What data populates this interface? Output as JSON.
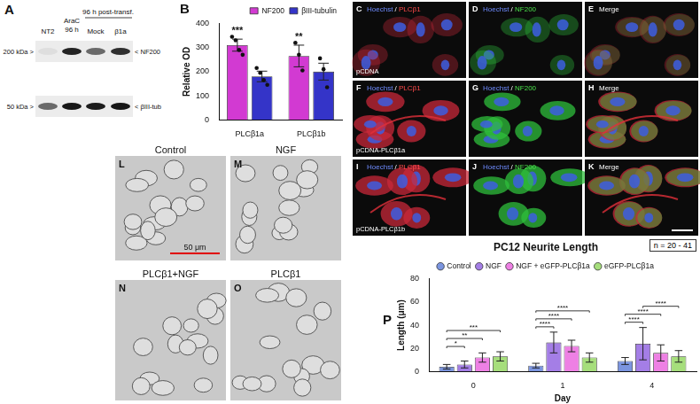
{
  "panel_a": {
    "letter": "A",
    "lanes": [
      [
        "NT2"
      ],
      [
        "AraC",
        "96 h"
      ],
      [
        "Mock"
      ],
      [
        "β1a"
      ]
    ],
    "group_label": "96 h post-transf.",
    "rows": [
      {
        "size": "200 kDa >",
        "band": "< NF200"
      },
      {
        "size": "50 kDa >",
        "band": "< βIII-tub"
      }
    ]
  },
  "micrographs_c_k": {
    "columns": [
      "Hoechst / PLCβ1",
      "Hoechst / NF200",
      "Merge"
    ],
    "rows": [
      {
        "condition": "pCDNA",
        "letters": [
          "C",
          "D",
          "E"
        ]
      },
      {
        "condition": "pCDNA-PLCβ1a",
        "letters": [
          "F",
          "G",
          "H"
        ]
      },
      {
        "condition": "pCDNA-PLCβ1b",
        "letters": [
          "I",
          "J",
          "K"
        ]
      }
    ]
  },
  "micrographs_l_o": {
    "panels": [
      {
        "letter": "L",
        "label": "Control"
      },
      {
        "letter": "M",
        "label": "NGF"
      },
      {
        "letter": "N",
        "label": "PLCβ1+NGF"
      },
      {
        "letter": "O",
        "label": "PLCβ1"
      }
    ],
    "scale_bar": "50 μm"
  },
  "chart_data": [
    {
      "type": "bar",
      "letter": "B",
      "ylabel": "Relative OD",
      "categories": [
        "PLCβ1a",
        "PLCβ1b"
      ],
      "ylim": [
        0,
        400
      ],
      "yticks": [
        0,
        100,
        200,
        300,
        400
      ],
      "grid": false,
      "legend": "top-right",
      "series": [
        {
          "name": "NF200",
          "color": "#d23ad2",
          "values": [
            310,
            265
          ],
          "errors": [
            25,
            45
          ],
          "points": [
            [
              345,
              330,
              290,
              270
            ],
            [
              320,
              270,
              205
            ]
          ]
        },
        {
          "name": "βIII-tubulin",
          "color": "#3434c8",
          "values": [
            180,
            200
          ],
          "errors": [
            22,
            35
          ],
          "points": [
            [
              215,
              195,
              165,
              145
            ],
            [
              255,
              210,
              135
            ]
          ]
        }
      ],
      "annotations": [
        {
          "category": "PLCβ1a",
          "series": "NF200",
          "text": "***"
        },
        {
          "category": "PLCβ1b",
          "series": "NF200",
          "text": "**"
        }
      ]
    },
    {
      "type": "bar",
      "letter": "P",
      "title": "PC12 Neurite Length",
      "xlabel": "Day",
      "ylabel": "Length (μm)",
      "categories": [
        "0",
        "1",
        "4"
      ],
      "ylim": [
        0,
        80
      ],
      "yticks": [
        0,
        20,
        40,
        60,
        80
      ],
      "grid": false,
      "legend": "top",
      "note": "n = 20 - 41",
      "series": [
        {
          "name": "Control",
          "color": "#7b95e0",
          "values": [
            4,
            5,
            9
          ],
          "errors": [
            2,
            2,
            3
          ]
        },
        {
          "name": "NGF",
          "color": "#a47ee6",
          "values": [
            6,
            25,
            24
          ],
          "errors": [
            3,
            9,
            14
          ]
        },
        {
          "name": "NGF + eGFP-PLCβ1a",
          "color": "#ee80e4",
          "values": [
            12,
            22,
            16
          ],
          "errors": [
            4,
            5,
            7
          ]
        },
        {
          "name": "eGFP-PLCβ1a",
          "color": "#a6de7c",
          "values": [
            13,
            12,
            13
          ],
          "errors": [
            4,
            4,
            5
          ]
        }
      ],
      "significance": [
        {
          "category": "0",
          "from": "Control",
          "to": "NGF",
          "label": "*"
        },
        {
          "category": "0",
          "from": "Control",
          "to": "NGF + eGFP-PLCβ1a",
          "label": "**"
        },
        {
          "category": "0",
          "from": "Control",
          "to": "eGFP-PLCβ1a",
          "label": "***"
        },
        {
          "category": "1",
          "from": "Control",
          "to": "NGF",
          "label": "****"
        },
        {
          "category": "1",
          "from": "Control",
          "to": "NGF + eGFP-PLCβ1a",
          "label": "****"
        },
        {
          "category": "1",
          "from": "Control",
          "to": "eGFP-PLCβ1a",
          "label": "****"
        },
        {
          "category": "4",
          "from": "Control",
          "to": "NGF",
          "label": "****"
        },
        {
          "category": "4",
          "from": "Control",
          "to": "NGF + eGFP-PLCβ1a",
          "label": "****"
        },
        {
          "category": "4",
          "from": "NGF",
          "to": "eGFP-PLCβ1a",
          "label": "****"
        }
      ]
    }
  ]
}
